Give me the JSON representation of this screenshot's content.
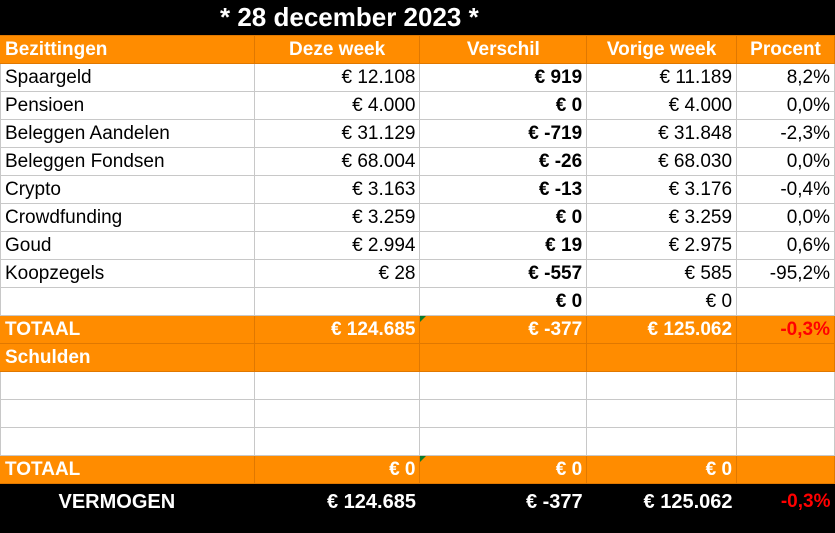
{
  "title": "* 28 december 2023 *",
  "headers": [
    "Bezittingen",
    "Deze week",
    "Verschil",
    "Vorige week",
    "Procent"
  ],
  "assets": [
    {
      "name": "Spaargeld",
      "current": "€ 12.108",
      "diff": "€ 919",
      "previous": "€ 11.189",
      "pct": "8,2%",
      "pct_sign": "pos"
    },
    {
      "name": "Pensioen",
      "current": "€ 4.000",
      "diff": "€ 0",
      "previous": "€ 4.000",
      "pct": "0,0%",
      "pct_sign": "pos"
    },
    {
      "name": "Beleggen Aandelen",
      "current": "€ 31.129",
      "diff": "€ -719",
      "previous": "€ 31.848",
      "pct": "-2,3%",
      "pct_sign": "neg"
    },
    {
      "name": "Beleggen Fondsen",
      "current": "€ 68.004",
      "diff": "€ -26",
      "previous": "€ 68.030",
      "pct": "0,0%",
      "pct_sign": "pos"
    },
    {
      "name": "Crypto",
      "current": "€ 3.163",
      "diff": "€ -13",
      "previous": "€ 3.176",
      "pct": "-0,4%",
      "pct_sign": "neg"
    },
    {
      "name": "Crowdfunding",
      "current": "€ 3.259",
      "diff": "€ 0",
      "previous": "€ 3.259",
      "pct": "0,0%",
      "pct_sign": "pos"
    },
    {
      "name": "Goud",
      "current": "€ 2.994",
      "diff": "€ 19",
      "previous": "€ 2.975",
      "pct": "0,6%",
      "pct_sign": "pos"
    },
    {
      "name": "Koopzegels",
      "current": "€ 28",
      "diff": "€ -557",
      "previous": "€ 585",
      "pct": "-95,2%",
      "pct_sign": "neg"
    },
    {
      "name": "",
      "current": "",
      "diff": "€ 0",
      "previous": "€ 0",
      "pct": "",
      "pct_sign": "pos"
    }
  ],
  "assets_total": {
    "label": "TOTAAL",
    "current": "€ 124.685",
    "diff": "€ -377",
    "previous": "€ 125.062",
    "pct": "-0,3%"
  },
  "debts_header": "Schulden",
  "debts_total": {
    "label": "TOTAAL",
    "current": "€ 0",
    "diff": "€ 0",
    "previous": "€ 0",
    "pct": ""
  },
  "net_worth": {
    "label": "VERMOGEN",
    "current": "€ 124.685",
    "diff": "€ -377",
    "previous": "€ 125.062",
    "pct": "-0,3%"
  },
  "colors": {
    "header_bg": "#ff8c00",
    "positive": "#1a9a3a",
    "negative": "#e00000",
    "background": "#000000"
  }
}
